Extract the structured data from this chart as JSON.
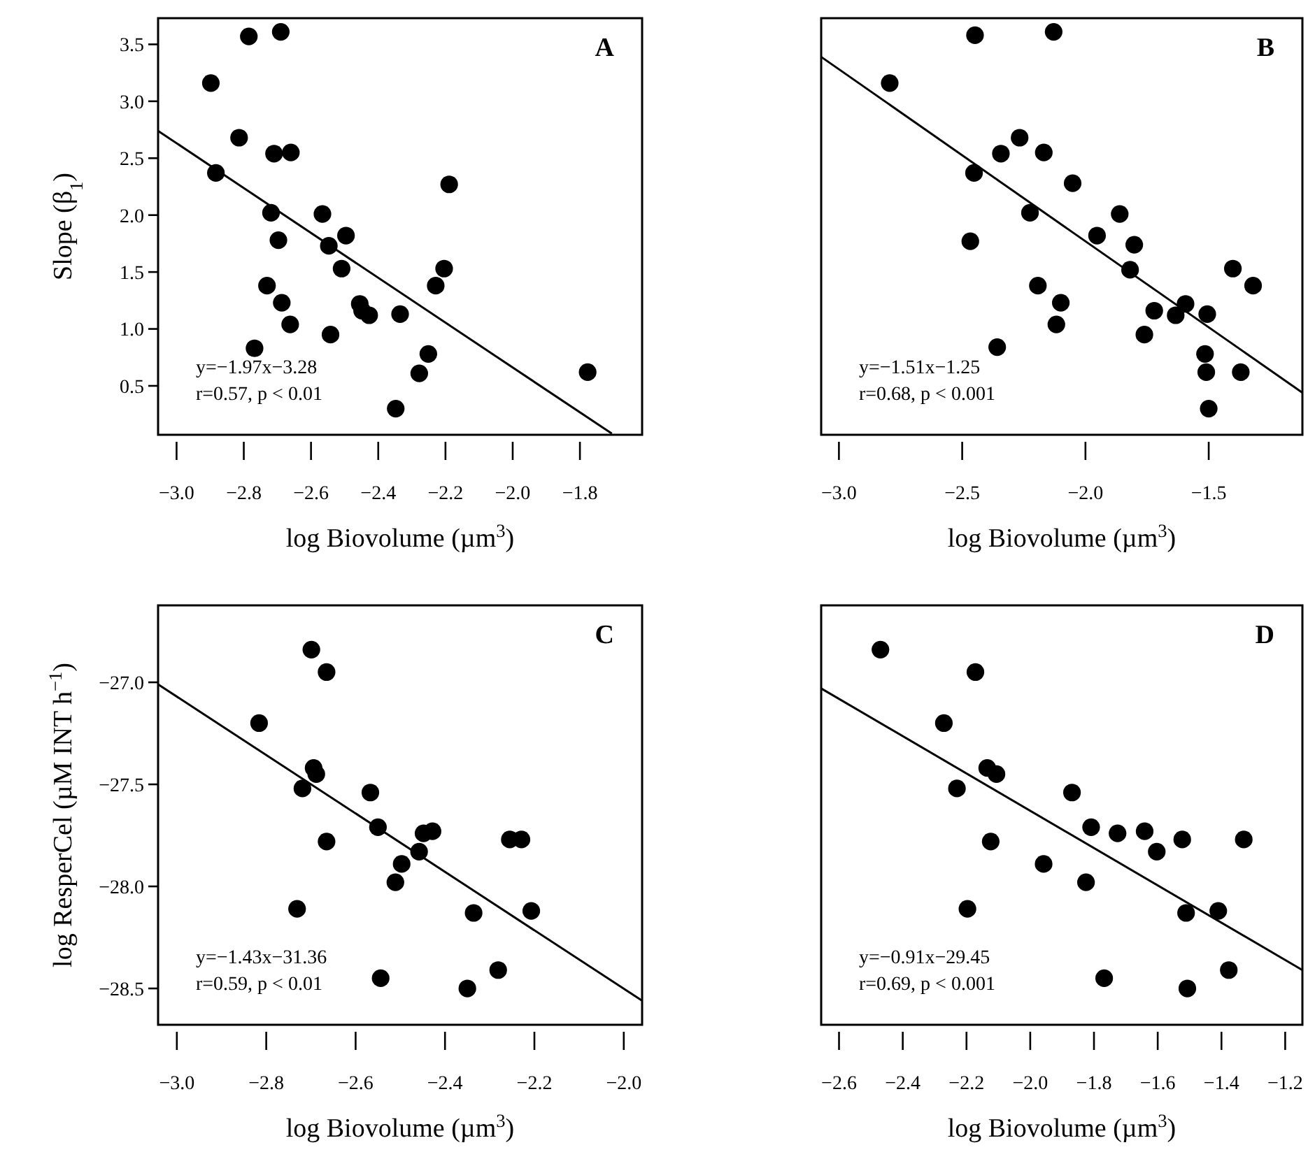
{
  "chart_data": [
    {
      "type": "scatter",
      "title": "A",
      "xlabel": "log Biovolume (µm$^{3}$)",
      "ylabel": "Slope (β$_{1}$)",
      "marker": "circle",
      "grid": false,
      "xlim": [
        -3.055,
        -1.615
      ],
      "ylim": [
        0.07,
        3.73
      ],
      "xticks": [
        {
          "value": -3.0,
          "label": "−3.0"
        },
        {
          "value": -2.8,
          "label": "−2.8"
        },
        {
          "value": -2.6,
          "label": "−2.6"
        },
        {
          "value": -2.4,
          "label": "−2.4"
        },
        {
          "value": -2.2,
          "label": "−2.2"
        },
        {
          "value": -2.0,
          "label": "−2.0"
        },
        {
          "value": -1.8,
          "label": "−1.8"
        }
      ],
      "yticks": [
        0.5,
        {
          "value": 1.0,
          "label": "1.0"
        },
        1.5,
        {
          "value": 2.0,
          "label": "2.0"
        },
        2.5,
        {
          "value": 3.0,
          "label": "3.0"
        },
        3.5
      ],
      "annotations": [
        "y=−1.97x−3.28",
        "r=0.57,  p < 0.01"
      ],
      "series": [
        {
          "color": "#000000",
          "x": [
            -2.898,
            -2.785,
            -2.69,
            -2.814,
            -2.71,
            -2.66,
            -2.883,
            -2.719,
            -2.697,
            -2.566,
            -2.496,
            -2.547,
            -2.509,
            -2.731,
            -2.687,
            -2.662,
            -2.768,
            -2.542,
            -2.455,
            -2.448,
            -2.427,
            -2.335,
            -2.229,
            -2.204,
            -2.189,
            -2.251,
            -2.278,
            -2.348,
            -1.777
          ],
          "values": [
            3.16,
            3.57,
            3.61,
            2.68,
            2.54,
            2.55,
            2.37,
            2.02,
            1.78,
            2.01,
            1.82,
            1.73,
            1.53,
            1.38,
            1.23,
            1.04,
            0.83,
            0.95,
            1.22,
            1.16,
            1.12,
            1.13,
            1.38,
            1.53,
            2.27,
            0.78,
            0.61,
            0.3,
            0.62
          ]
        },
        {
          "type": "line",
          "color": "#000000",
          "marker": "none",
          "x": [
            -3.055,
            -1.705
          ],
          "values": [
            2.74,
            0.08
          ]
        }
      ]
    },
    {
      "type": "scatter",
      "title": "B",
      "xlabel": "log Biovolume (µm$^{3}$)",
      "marker": "circle",
      "grid": false,
      "tick_labels": "x",
      "xlim": [
        -3.072,
        -1.12
      ],
      "ylim": [
        0.07,
        3.73
      ],
      "xticks": [
        {
          "value": -3.0,
          "label": "−3.0"
        },
        {
          "value": -2.5,
          "label": "−2.5"
        },
        {
          "value": -2.0,
          "label": "−2.0"
        },
        {
          "value": -1.5,
          "label": "−1.5"
        }
      ],
      "annotations": [
        "y=−1.51x−1.25",
        "r=0.68,   p < 0.001"
      ],
      "series": [
        {
          "color": "#000000",
          "x": [
            -2.794,
            -2.448,
            -2.129,
            -2.267,
            -2.343,
            -2.169,
            -2.452,
            -2.052,
            -2.225,
            -1.861,
            -1.953,
            -1.802,
            -1.819,
            -2.467,
            -2.193,
            -2.1,
            -2.118,
            -2.358,
            -1.721,
            -1.634,
            -1.594,
            -1.506,
            -1.761,
            -1.402,
            -1.32,
            -1.515,
            -1.51,
            -1.37,
            -1.5
          ],
          "values": [
            3.16,
            3.58,
            3.61,
            2.68,
            2.54,
            2.55,
            2.37,
            2.28,
            2.02,
            2.01,
            1.82,
            1.74,
            1.52,
            1.77,
            1.38,
            1.23,
            1.04,
            0.84,
            1.16,
            1.12,
            1.22,
            1.13,
            0.95,
            1.53,
            1.38,
            0.78,
            0.62,
            0.62,
            0.3
          ]
        },
        {
          "type": "line",
          "color": "#000000",
          "marker": "none",
          "x": [
            -3.072,
            -1.12
          ],
          "values": [
            3.39,
            0.44
          ]
        }
      ]
    },
    {
      "type": "scatter",
      "title": "C",
      "xlabel": "log Biovolume (µm$^{3}$)",
      "ylabel": "log ResperCel (µM INT h$^{−1}$)",
      "marker": "circle",
      "grid": false,
      "xlim": [
        -3.042,
        -1.959
      ],
      "ylim": [
        -28.678,
        -26.623
      ],
      "xticks": [
        {
          "value": -3.0,
          "label": "−3.0"
        },
        {
          "value": -2.8,
          "label": "−2.8"
        },
        {
          "value": -2.6,
          "label": "−2.6"
        },
        {
          "value": -2.4,
          "label": "−2.4"
        },
        {
          "value": -2.2,
          "label": "−2.2"
        },
        {
          "value": -2.0,
          "label": "−2.0"
        }
      ],
      "yticks": [
        {
          "value": -28.5,
          "label": "−28.5"
        },
        {
          "value": -28.0,
          "label": "−28.0"
        },
        {
          "value": -27.5,
          "label": "−27.5"
        },
        {
          "value": -27.0,
          "label": "−27.0"
        }
      ],
      "annotations": [
        "y=−1.43x−31.36",
        "r=0.59,  p < 0.01"
      ],
      "series": [
        {
          "color": "#000000",
          "x": [
            -2.699,
            -2.665,
            -2.816,
            -2.694,
            -2.688,
            -2.719,
            -2.567,
            -2.55,
            -2.665,
            -2.448,
            -2.428,
            -2.458,
            -2.497,
            -2.511,
            -2.731,
            -2.544,
            -2.336,
            -2.35,
            -2.281,
            -2.255,
            -2.229,
            -2.207
          ],
          "values": [
            -26.84,
            -26.95,
            -27.2,
            -27.42,
            -27.45,
            -27.52,
            -27.54,
            -27.71,
            -27.78,
            -27.74,
            -27.73,
            -27.83,
            -27.89,
            -27.98,
            -28.11,
            -28.45,
            -28.13,
            -28.5,
            -28.41,
            -27.77,
            -27.77,
            -28.12
          ]
        },
        {
          "type": "line",
          "color": "#000000",
          "marker": "none",
          "x": [
            -3.042,
            -1.959
          ],
          "values": [
            -27.01,
            -28.56
          ]
        }
      ]
    },
    {
      "type": "scatter",
      "title": "D",
      "xlabel": "log Biovolume (µm$^{3}$)",
      "marker": "circle",
      "grid": false,
      "tick_labels": "x",
      "xlim": [
        -2.656,
        -1.146
      ],
      "ylim": [
        -28.678,
        -26.623
      ],
      "xticks": [
        {
          "value": -2.6,
          "label": "−2.6"
        },
        {
          "value": -2.4,
          "label": "−2.4"
        },
        {
          "value": -2.2,
          "label": "−2.2"
        },
        {
          "value": -2.0,
          "label": "−2.0"
        },
        {
          "value": -1.8,
          "label": "−1.8"
        },
        {
          "value": -1.6,
          "label": "−1.6"
        },
        {
          "value": -1.4,
          "label": "−1.4"
        },
        {
          "value": -1.2,
          "label": "−1.2"
        }
      ],
      "annotations": [
        "y=−0.91x−29.45",
        "r=0.69,  p < 0.001"
      ],
      "series": [
        {
          "color": "#000000",
          "x": [
            -2.47,
            -2.172,
            -2.271,
            -2.135,
            -2.106,
            -2.23,
            -1.869,
            -1.809,
            -1.726,
            -1.641,
            -1.603,
            -1.523,
            -1.33,
            -2.124,
            -1.958,
            -1.825,
            -2.197,
            -1.511,
            -1.41,
            -1.768,
            -1.507,
            -1.377
          ],
          "values": [
            -26.84,
            -26.95,
            -27.2,
            -27.42,
            -27.45,
            -27.52,
            -27.54,
            -27.71,
            -27.74,
            -27.73,
            -27.83,
            -27.77,
            -27.77,
            -27.78,
            -27.89,
            -27.98,
            -28.11,
            -28.13,
            -28.12,
            -28.45,
            -28.5,
            -28.41
          ]
        },
        {
          "type": "line",
          "color": "#000000",
          "marker": "none",
          "x": [
            -2.656,
            -1.146
          ],
          "values": [
            -27.03,
            -28.41
          ]
        }
      ]
    }
  ]
}
